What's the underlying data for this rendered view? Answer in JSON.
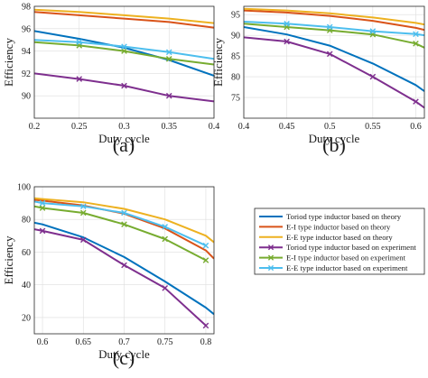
{
  "chart_data": [
    {
      "panel_label": "(a)",
      "type": "line",
      "xlabel": "Duty cycle",
      "ylabel": "Efficiency",
      "xlim": [
        0.2,
        0.4
      ],
      "ylim": [
        88,
        98
      ],
      "xticks": [
        "0.2",
        "0.25",
        "0.3",
        "0.35",
        "0.4"
      ],
      "yticks": [
        "90",
        "92",
        "94",
        "96",
        "98"
      ],
      "grid": true,
      "x": [
        0.2,
        0.25,
        0.3,
        0.35,
        0.4
      ],
      "series": [
        {
          "name": "Toriod type inductor based on theory",
          "color": "#0072BD",
          "marker": "none",
          "values": [
            95.8,
            95.1,
            94.3,
            93.2,
            91.8
          ]
        },
        {
          "name": "E-I type inductor based on theory",
          "color": "#D95319",
          "marker": "none",
          "values": [
            97.5,
            97.2,
            96.9,
            96.6,
            96.1
          ]
        },
        {
          "name": "E-E type inductor based on theory",
          "color": "#EDB120",
          "marker": "none",
          "values": [
            97.7,
            97.5,
            97.2,
            96.9,
            96.5
          ]
        },
        {
          "name": "Toriod type inductor based on experiment",
          "color": "#7E2F8E",
          "marker": "x",
          "values": [
            92.0,
            91.5,
            90.9,
            90.0,
            89.5
          ]
        },
        {
          "name": "E-I type inductor based on experiment",
          "color": "#77AC30",
          "marker": "x",
          "values": [
            94.8,
            94.5,
            94.0,
            93.3,
            92.8
          ]
        },
        {
          "name": "E-E type inductor based on experiment",
          "color": "#4DBEEE",
          "marker": "x",
          "values": [
            95.0,
            94.8,
            94.4,
            93.9,
            93.3
          ]
        }
      ]
    },
    {
      "panel_label": "(b)",
      "type": "line",
      "xlabel": "Duty cycle",
      "ylabel": "Efficiency",
      "xlim": [
        0.4,
        0.61
      ],
      "ylim": [
        70,
        97
      ],
      "xticks": [
        "0.4",
        "0.45",
        "0.5",
        "0.55",
        "0.6"
      ],
      "yticks": [
        "75",
        "80",
        "85",
        "90",
        "95"
      ],
      "grid": true,
      "x": [
        0.4,
        0.45,
        0.5,
        0.55,
        0.6,
        0.61
      ],
      "series": [
        {
          "name": "Toriod type inductor based on theory",
          "color": "#0072BD",
          "marker": "none",
          "values": [
            92.0,
            90.2,
            87.5,
            83.2,
            78.0,
            76.5
          ]
        },
        {
          "name": "E-I type inductor based on theory",
          "color": "#D95319",
          "marker": "none",
          "values": [
            96.0,
            95.5,
            94.7,
            93.5,
            91.8,
            91.3
          ]
        },
        {
          "name": "E-E type inductor based on theory",
          "color": "#EDB120",
          "marker": "none",
          "values": [
            96.4,
            96.0,
            95.3,
            94.3,
            93.0,
            92.6
          ]
        },
        {
          "name": "Toriod type inductor based on experiment",
          "color": "#7E2F8E",
          "marker": "x",
          "values": [
            89.5,
            88.5,
            85.5,
            80.0,
            74.0,
            72.5
          ]
        },
        {
          "name": "E-I type inductor based on experiment",
          "color": "#77AC30",
          "marker": "x",
          "values": [
            92.8,
            92.0,
            91.2,
            90.2,
            88.0,
            87.0
          ]
        },
        {
          "name": "E-E type inductor based on experiment",
          "color": "#4DBEEE",
          "marker": "x",
          "values": [
            93.3,
            92.8,
            92.0,
            91.0,
            90.3,
            90.0
          ]
        }
      ]
    },
    {
      "panel_label": "(c)",
      "type": "line",
      "xlabel": "Duty cycle",
      "ylabel": "Efficiency",
      "xlim": [
        0.59,
        0.81
      ],
      "ylim": [
        10,
        100
      ],
      "xticks": [
        "0.6",
        "0.65",
        "0.7",
        "0.75",
        "0.8"
      ],
      "yticks": [
        "20",
        "40",
        "60",
        "80",
        "100"
      ],
      "grid": true,
      "x": [
        0.59,
        0.6,
        0.65,
        0.7,
        0.75,
        0.8,
        0.81
      ],
      "series": [
        {
          "name": "Toriod type inductor based on theory",
          "color": "#0072BD",
          "marker": "none",
          "values": [
            78.0,
            77.0,
            69.0,
            57.0,
            42.0,
            26.0,
            22.0
          ]
        },
        {
          "name": "E-I type inductor based on theory",
          "color": "#D95319",
          "marker": "none",
          "values": [
            92.0,
            91.5,
            88.5,
            83.5,
            74.5,
            61.0,
            56.0
          ]
        },
        {
          "name": "E-E type inductor based on theory",
          "color": "#EDB120",
          "marker": "none",
          "values": [
            93.0,
            92.5,
            90.5,
            86.5,
            80.0,
            70.0,
            66.0
          ]
        },
        {
          "name": "Toriod type inductor based on experiment",
          "color": "#7E2F8E",
          "marker": "x",
          "values": [
            74.0,
            73.0,
            67.5,
            52.0,
            38.0,
            15.0,
            null
          ]
        },
        {
          "name": "E-I type inductor based on experiment",
          "color": "#77AC30",
          "marker": "x",
          "values": [
            88.0,
            87.0,
            84.0,
            77.0,
            68.0,
            55.0,
            null
          ]
        },
        {
          "name": "E-E type inductor based on experiment",
          "color": "#4DBEEE",
          "marker": "x",
          "values": [
            91.0,
            90.0,
            88.0,
            84.0,
            75.5,
            64.0,
            null
          ]
        }
      ]
    }
  ],
  "legend": {
    "placement": "lower-right",
    "entries": [
      {
        "label": "Toriod type inductor based on theory",
        "color": "#0072BD",
        "marker": "none"
      },
      {
        "label": "E-I type inductor based on theory",
        "color": "#D95319",
        "marker": "none"
      },
      {
        "label": "E-E type inductor based on theory",
        "color": "#EDB120",
        "marker": "none"
      },
      {
        "label": "Toriod type inductor based on experiment",
        "color": "#7E2F8E",
        "marker": "x"
      },
      {
        "label": "E-I type inductor based on experiment",
        "color": "#77AC30",
        "marker": "x"
      },
      {
        "label": "E-E type inductor based on experiment",
        "color": "#4DBEEE",
        "marker": "x"
      }
    ]
  }
}
